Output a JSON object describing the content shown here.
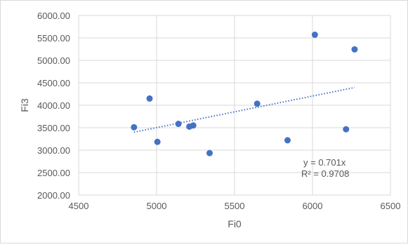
{
  "chart_data": {
    "type": "scatter",
    "title": "",
    "xlabel": "Fi0",
    "ylabel": "Fi3",
    "xlim": [
      4500,
      6500
    ],
    "ylim": [
      2000,
      6000
    ],
    "x_ticks": [
      "4500",
      "5000",
      "5500",
      "6000",
      "6500"
    ],
    "y_ticks": [
      "2000.00",
      "2500.00",
      "3000.00",
      "3500.00",
      "4000.00",
      "4500.00",
      "5000.00",
      "5500.00",
      "6000.00"
    ],
    "x_tick_values": [
      4500,
      5000,
      5500,
      6000,
      6500
    ],
    "y_tick_values": [
      2000,
      2500,
      3000,
      3500,
      4000,
      4500,
      5000,
      5500,
      6000
    ],
    "grid": true,
    "series": [
      {
        "color": "#4472C4",
        "points": [
          {
            "x": 4855,
            "y": 3510
          },
          {
            "x": 4955,
            "y": 4150
          },
          {
            "x": 5005,
            "y": 3185
          },
          {
            "x": 5140,
            "y": 3585
          },
          {
            "x": 5210,
            "y": 3525
          },
          {
            "x": 5235,
            "y": 3550
          },
          {
            "x": 5340,
            "y": 2935
          },
          {
            "x": 5645,
            "y": 4035
          },
          {
            "x": 5840,
            "y": 3220
          },
          {
            "x": 6015,
            "y": 5570
          },
          {
            "x": 6215,
            "y": 3465
          },
          {
            "x": 6270,
            "y": 5245
          }
        ]
      }
    ],
    "trendline": {
      "style": "dotted",
      "color": "#4472C4",
      "x_range": [
        4855,
        6270
      ],
      "y_range": [
        3400,
        4395
      ]
    },
    "annotations": {
      "equation": "y = 0.701x",
      "r_squared": "R² = 0.9708"
    }
  },
  "colors": {
    "grid": "#D9D9D9",
    "axis_text": "#595959",
    "border": "#D9D9D9"
  }
}
